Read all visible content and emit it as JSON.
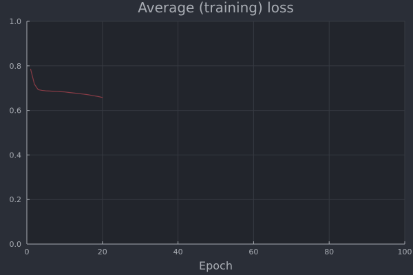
{
  "chart_data": {
    "type": "line",
    "title": "Average (training) loss",
    "xlabel": "Epoch",
    "ylabel": "",
    "xlim": [
      0,
      100
    ],
    "ylim": [
      0.0,
      1.0
    ],
    "xticks": [
      0,
      20,
      40,
      60,
      80,
      100
    ],
    "yticks": [
      0.0,
      0.2,
      0.4,
      0.6,
      0.8,
      1.0
    ],
    "xtick_labels": [
      "0",
      "20",
      "40",
      "60",
      "80",
      "100"
    ],
    "ytick_labels": [
      "0.0",
      "0.2",
      "0.4",
      "0.6",
      "0.8",
      "1.0"
    ],
    "grid": true,
    "legend": "none",
    "series": [
      {
        "color": "#8a3c46",
        "x": [
          1,
          2,
          3,
          4,
          5,
          6,
          7,
          8,
          9,
          10,
          11,
          12,
          13,
          14,
          15,
          16,
          17,
          18,
          19,
          20
        ],
        "y": [
          0.785,
          0.718,
          0.693,
          0.69,
          0.688,
          0.687,
          0.686,
          0.685,
          0.684,
          0.683,
          0.681,
          0.679,
          0.677,
          0.675,
          0.673,
          0.671,
          0.668,
          0.665,
          0.662,
          0.658
        ]
      }
    ]
  },
  "colors": {
    "background": "#2a2e37",
    "plot_background": "#22252c",
    "grid": "#363a42",
    "axis": "#a8acb3",
    "text": "#a8acb3"
  }
}
